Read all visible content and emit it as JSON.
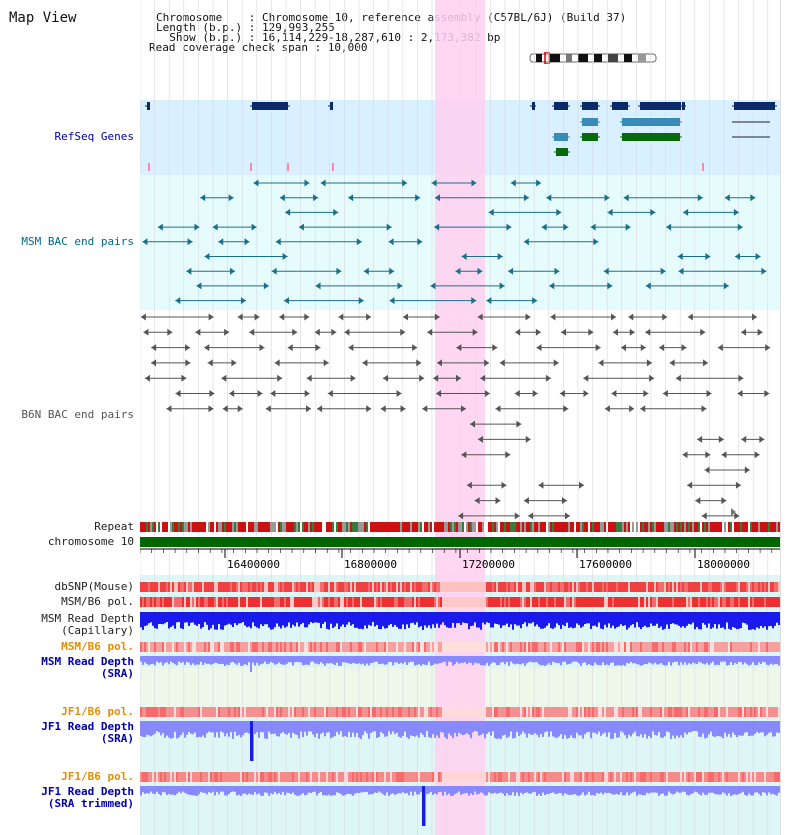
{
  "title": "Map View",
  "info": {
    "lines": [
      "Chromosome    : Chromosome 10, reference assembly (C57BL/6J) (Build 37)",
      "Length (b.p.) : 129,993,255",
      "  Show (b.p.) : 16,114,229-18,287,610 : 2,173,382 bp",
      "Read coverage check span : 10,000"
    ]
  },
  "tracks": {
    "refseq": "RefSeq Genes",
    "msm_bac": "MSM BAC end pairs",
    "b6n_bac": "B6N BAC end pairs",
    "repeat": "Repeat",
    "chromosome": "chromosome 10",
    "dbsnp": "dbSNP(Mouse)",
    "msm_b6_pol": "MSM/B6 pol.",
    "msm_read_depth_cap_1": "MSM Read Depth",
    "msm_read_depth_cap_2": "(Capillary)",
    "msm_b6_pol_sra": "MSM/B6 pol.",
    "msm_read_depth_sra_1": "MSM Read Depth",
    "msm_read_depth_sra_2": "(SRA)",
    "jf1_b6_pol": "JF1/B6 pol.",
    "jf1_read_depth_1": "JF1 Read Depth",
    "jf1_read_depth_2": "(SRA)",
    "jf1_b6_pol_2": "JF1/B6 pol.",
    "jf1_read_depth_trim_1": "JF1 Read Depth",
    "jf1_read_depth_trim_2": "(SRA trimmed)"
  },
  "axis": {
    "ticks": [
      "16400000",
      "16800000",
      "17200000",
      "17600000",
      "18000000"
    ]
  },
  "colors": {
    "highlight": "#ffd0f0",
    "refseq_bg": "#d8f0ff",
    "msm_bg": "#e6fcfc",
    "navy": "#0a2a6a",
    "teal_gene": "#3a8ab8",
    "green_gene": "#0a6a0a",
    "chromosome": "#006600",
    "snp_red": "#f03030",
    "depth_blue": "#1a1aee",
    "depth_light": "#8888ff"
  }
}
